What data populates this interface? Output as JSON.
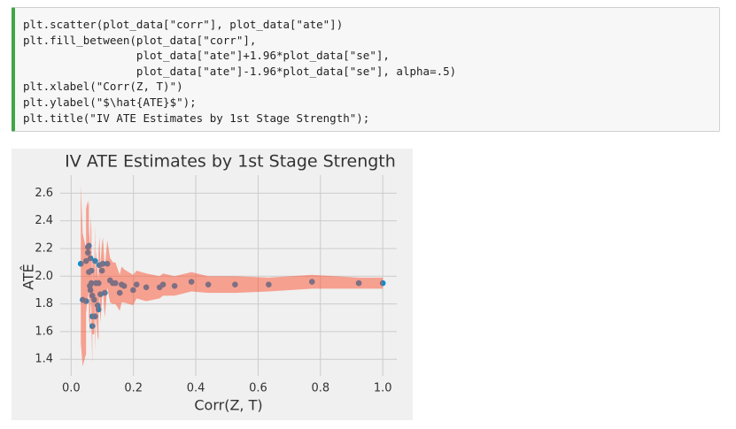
{
  "code": {
    "lines": [
      "plt.scatter(plot_data[\"corr\"], plot_data[\"ate\"])",
      "plt.fill_between(plot_data[\"corr\"],",
      "                 plot_data[\"ate\"]+1.96*plot_data[\"se\"],",
      "                 plot_data[\"ate\"]-1.96*plot_data[\"se\"], alpha=.5)",
      "plt.xlabel(\"Corr(Z, T)\")",
      "plt.ylabel(\"$\\hat{ATE}$\");",
      "plt.title(\"IV ATE Estimates by 1st Stage Strength\");"
    ]
  },
  "chart_data": {
    "type": "scatter",
    "title": "IV ATE Estimates by 1st Stage Strength",
    "xlabel": "Corr(Z, T)",
    "ylabel": "ATÊ",
    "color": "#008fd5",
    "band_color": "#fc4f30",
    "band_alpha": 0.5,
    "grid": true,
    "xlim": [
      -0.035,
      1.045
    ],
    "ylim": [
      1.28,
      2.73
    ],
    "xticks": [
      {
        "value": 0,
        "label": "0.0"
      },
      0.2,
      0.4,
      0.6,
      0.8,
      {
        "value": 1,
        "label": "1.0"
      }
    ],
    "yticks": [
      1.4,
      1.6,
      1.8,
      {
        "value": 2,
        "label": "2.0"
      },
      2.2,
      2.4,
      2.6
    ],
    "x": [
      0.031,
      0.037,
      0.048,
      0.048,
      0.054,
      0.054,
      0.057,
      0.057,
      0.06,
      0.062,
      0.062,
      0.065,
      0.065,
      0.068,
      0.068,
      0.068,
      0.074,
      0.077,
      0.077,
      0.08,
      0.085,
      0.088,
      0.088,
      0.091,
      0.094,
      0.099,
      0.102,
      0.108,
      0.116,
      0.125,
      0.134,
      0.142,
      0.156,
      0.162,
      0.17,
      0.199,
      0.21,
      0.241,
      0.284,
      0.295,
      0.332,
      0.386,
      0.44,
      0.526,
      0.634,
      0.773,
      0.923,
      1.0
    ],
    "values": [
      2.09,
      1.83,
      1.82,
      2.11,
      2.21,
      2.17,
      2.22,
      2.03,
      1.93,
      1.9,
      2.13,
      2.04,
      1.95,
      1.64,
      1.71,
      1.86,
      1.83,
      2.11,
      1.71,
      1.95,
      1.79,
      1.76,
      1.95,
      2.08,
      1.87,
      2.04,
      2.09,
      1.88,
      2.09,
      1.97,
      1.95,
      1.95,
      1.88,
      1.94,
      1.93,
      1.9,
      1.94,
      1.92,
      1.92,
      1.94,
      1.93,
      1.96,
      1.94,
      1.94,
      1.94,
      1.96,
      1.95,
      1.95
    ],
    "band_upper": [
      2.66,
      2.31,
      2.2,
      2.49,
      2.55,
      2.51,
      2.54,
      2.35,
      2.24,
      2.2,
      2.43,
      2.33,
      2.24,
      1.92,
      1.99,
      2.14,
      2.08,
      2.36,
      1.96,
      2.19,
      2.02,
      1.98,
      2.17,
      2.29,
      2.08,
      2.24,
      2.28,
      2.06,
      2.26,
      2.13,
      2.1,
      2.1,
      2.01,
      2.07,
      2.05,
      2.01,
      2.04,
      2.02,
      2.0,
      2.02,
      2.0,
      2.03,
      2.0,
      2.0,
      1.99,
      2.01,
      1.99,
      1.99
    ],
    "band_lower": [
      1.52,
      1.35,
      1.44,
      1.73,
      1.87,
      1.83,
      1.9,
      1.71,
      1.62,
      1.6,
      1.83,
      1.75,
      1.66,
      1.36,
      1.43,
      1.58,
      1.58,
      1.86,
      1.46,
      1.71,
      1.56,
      1.54,
      1.73,
      1.87,
      1.66,
      1.84,
      1.9,
      1.7,
      1.92,
      1.81,
      1.8,
      1.8,
      1.75,
      1.81,
      1.81,
      1.79,
      1.84,
      1.82,
      1.84,
      1.86,
      1.86,
      1.89,
      1.88,
      1.88,
      1.89,
      1.91,
      1.91,
      1.91
    ]
  }
}
